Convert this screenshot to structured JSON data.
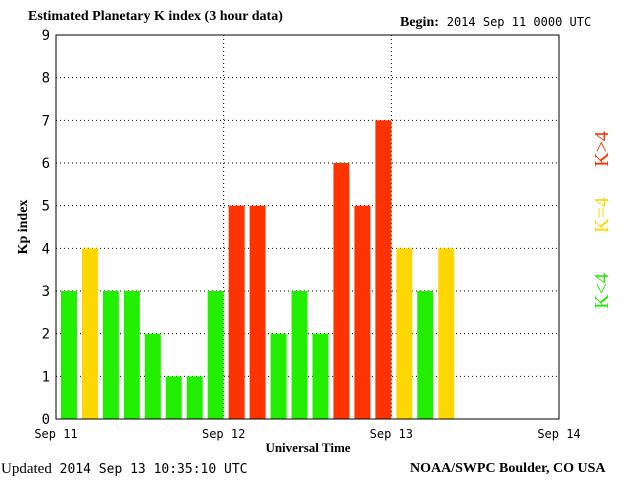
{
  "header": {
    "title": "Estimated Planetary K index (3 hour data)",
    "begin_label": "Begin:",
    "begin_value": "2014 Sep 11 0000 UTC"
  },
  "footer": {
    "updated_label": "Updated",
    "updated_value": "2014 Sep 13 10:35:10 UTC",
    "credit": "NOAA/SWPC Boulder, CO USA"
  },
  "chart_data": {
    "type": "bar",
    "xlabel": "Universal Time",
    "ylabel": "Kp index",
    "ylim": [
      0,
      9
    ],
    "yticks": [
      "0",
      "1",
      "2",
      "3",
      "4",
      "5",
      "6",
      "7",
      "8",
      "9"
    ],
    "xtick_labels": [
      "Sep 11",
      "Sep 12",
      "Sep 13",
      "Sep 14"
    ],
    "bin_hours": 3,
    "bins_total": 24,
    "values": [
      3,
      4,
      3,
      3,
      2,
      1,
      1,
      3,
      5,
      5,
      2,
      3,
      2,
      6,
      5,
      7,
      4,
      3,
      4
    ],
    "grid": "dotted",
    "colors": {
      "low": "#22ee00",
      "mid": "#ffd700",
      "high": "#ff3300"
    },
    "legend": [
      {
        "text": "K<4",
        "color": "#22ee00"
      },
      {
        "text": "K=4",
        "color": "#ffd700"
      },
      {
        "text": "K>4",
        "color": "#ff3300"
      }
    ]
  }
}
